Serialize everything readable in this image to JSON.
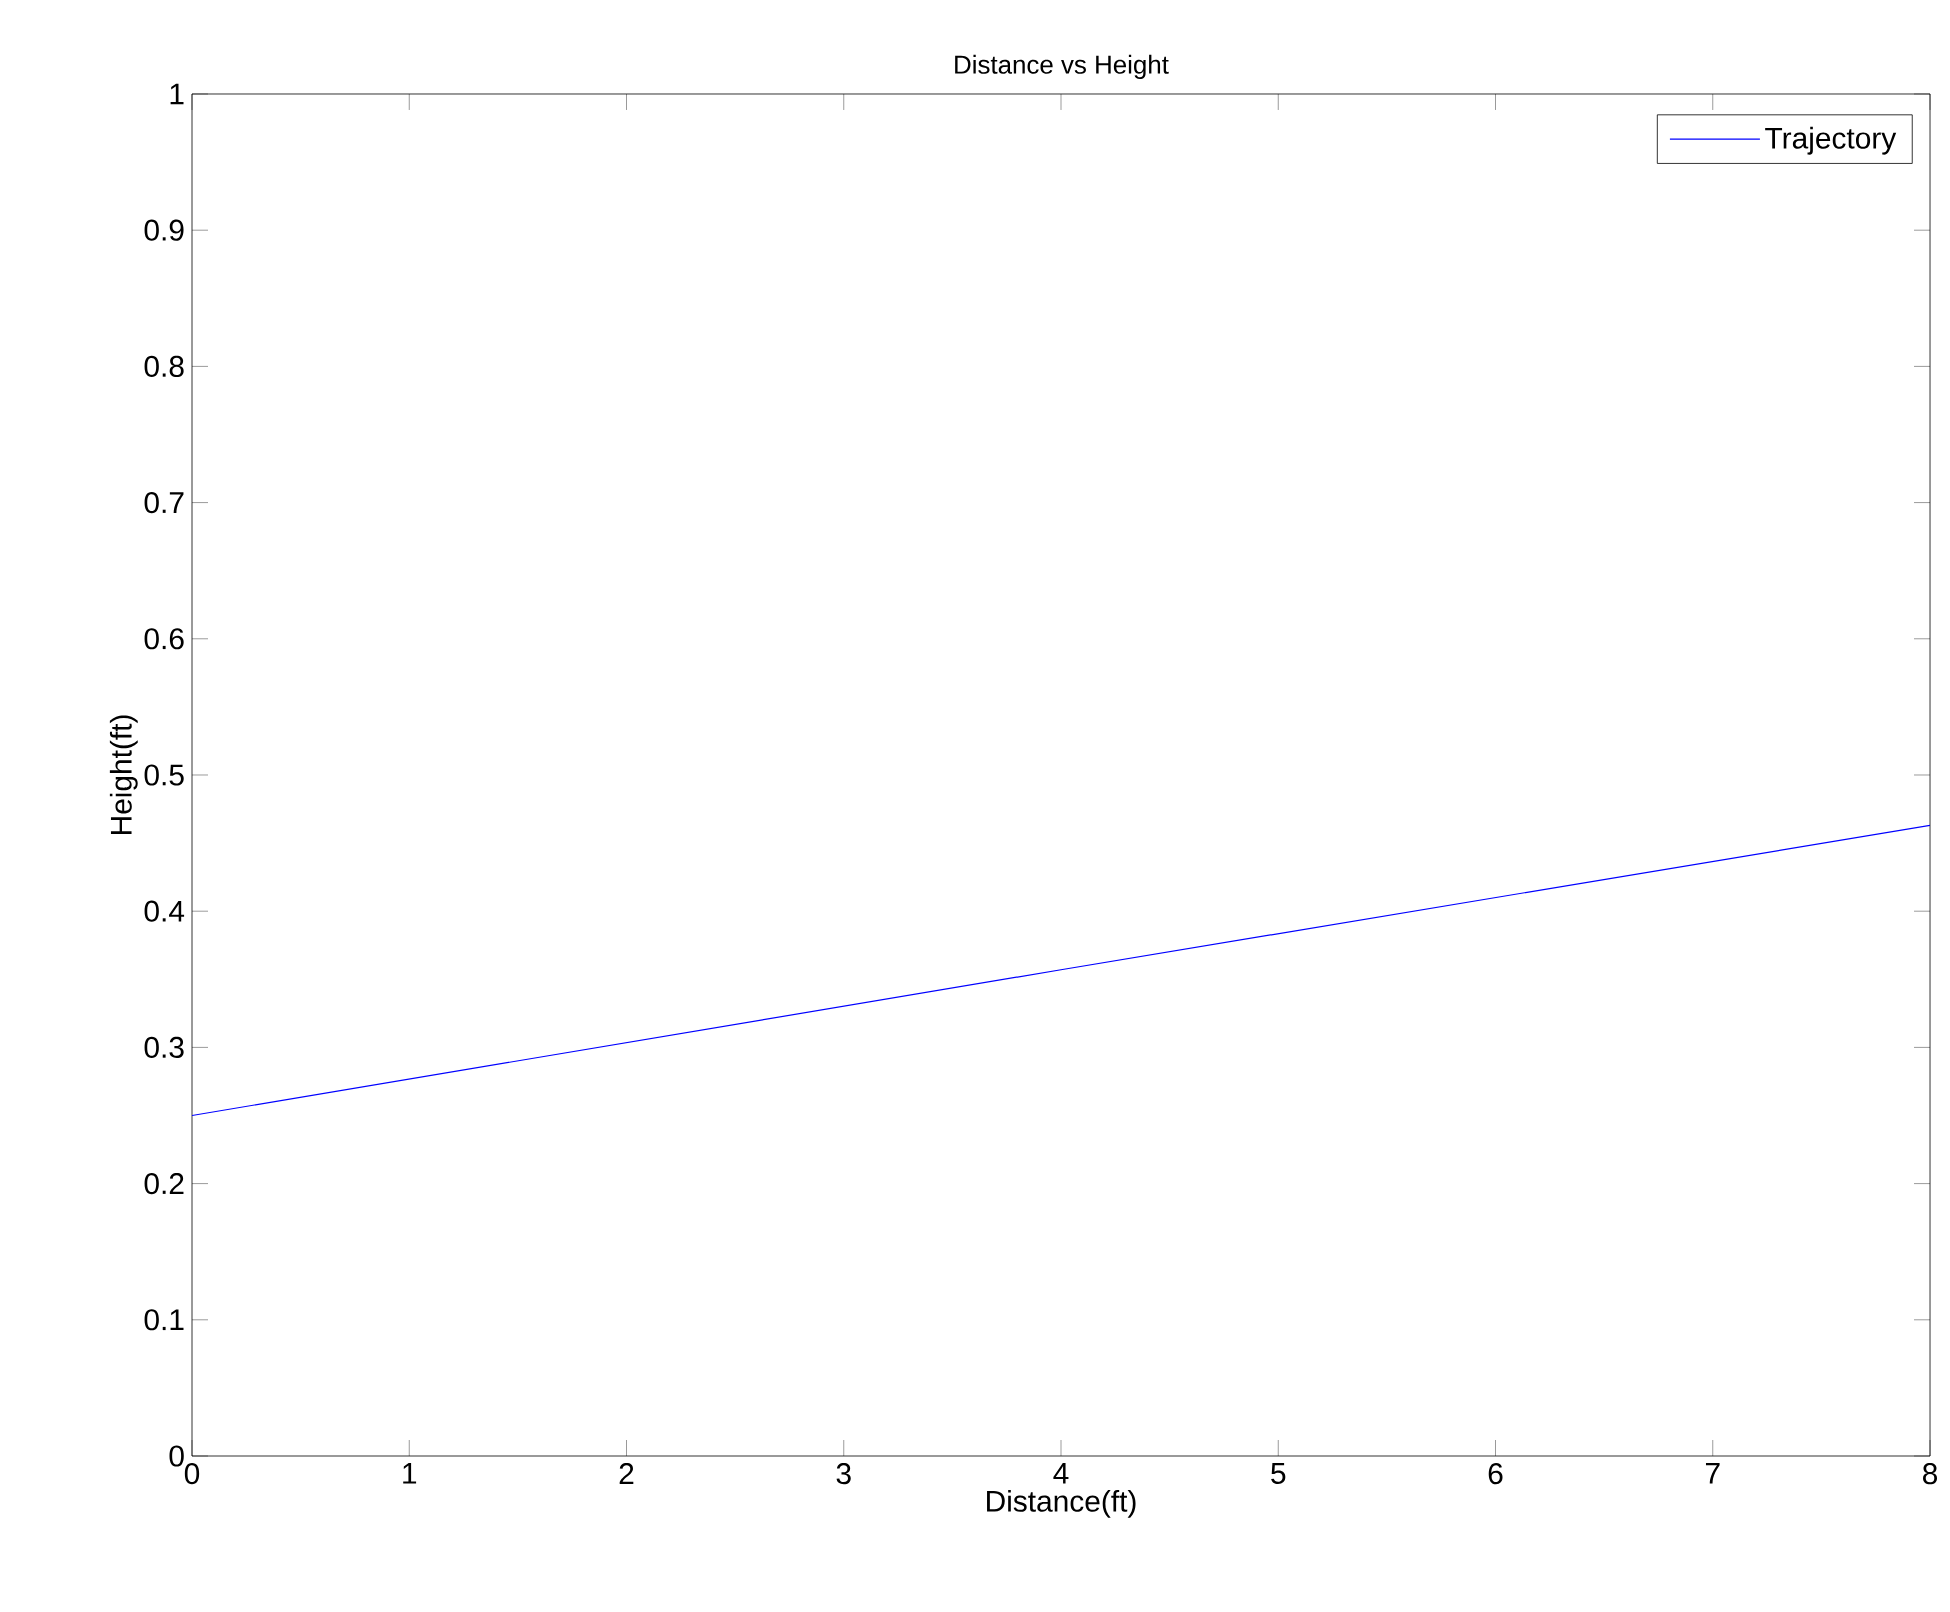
{
  "chart_data": {
    "type": "line",
    "title": "Distance vs Height",
    "xlabel": "Distance(ft)",
    "ylabel": "Height(ft)",
    "x": [
      0,
      4,
      8
    ],
    "series": [
      {
        "name": "Trajectory",
        "color": "#0000ff",
        "values": [
          0.25,
          0.357,
          0.463
        ]
      }
    ],
    "xlim": [
      0,
      8
    ],
    "xticks": [
      0,
      1,
      2,
      3,
      4,
      5,
      6,
      7,
      8
    ],
    "ylim": [
      0,
      1
    ],
    "yticks": [
      0,
      0.1,
      0.2,
      0.3,
      0.4,
      0.5,
      0.6,
      0.7,
      0.8,
      0.9,
      1
    ],
    "grid": false,
    "legend": "top right",
    "marker": "none",
    "line_style": "solid"
  }
}
